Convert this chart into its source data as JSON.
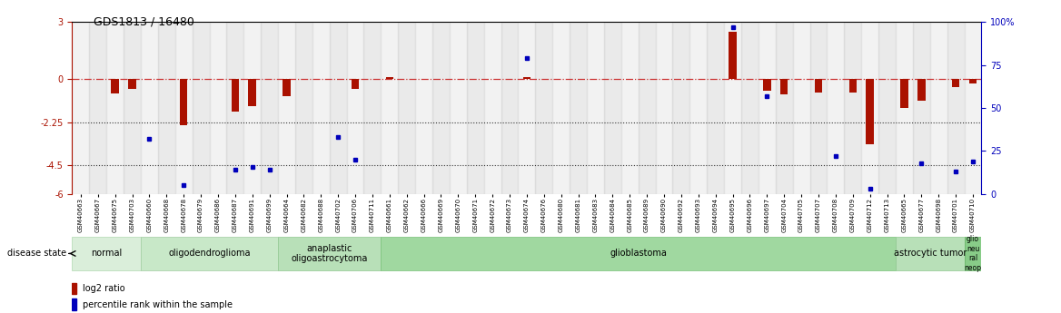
{
  "title": "GDS1813 / 16480",
  "samples": [
    "GSM40663",
    "GSM40667",
    "GSM40675",
    "GSM40703",
    "GSM40660",
    "GSM40668",
    "GSM40678",
    "GSM40679",
    "GSM40686",
    "GSM40687",
    "GSM40691",
    "GSM40699",
    "GSM40664",
    "GSM40682",
    "GSM40688",
    "GSM40702",
    "GSM40706",
    "GSM40711",
    "GSM40661",
    "GSM40662",
    "GSM40666",
    "GSM40669",
    "GSM40670",
    "GSM40671",
    "GSM40672",
    "GSM40673",
    "GSM40674",
    "GSM40676",
    "GSM40680",
    "GSM40681",
    "GSM40683",
    "GSM40684",
    "GSM40685",
    "GSM40689",
    "GSM40690",
    "GSM40692",
    "GSM40693",
    "GSM40694",
    "GSM40695",
    "GSM40696",
    "GSM40697",
    "GSM40704",
    "GSM40705",
    "GSM40707",
    "GSM40708",
    "GSM40709",
    "GSM40712",
    "GSM40713",
    "GSM40665",
    "GSM40677",
    "GSM40698",
    "GSM40701",
    "GSM40710"
  ],
  "log2_ratio": [
    null,
    null,
    -0.75,
    -0.5,
    null,
    null,
    -2.4,
    null,
    null,
    -1.7,
    -1.4,
    null,
    -0.9,
    null,
    null,
    null,
    -0.5,
    null,
    0.1,
    null,
    null,
    null,
    null,
    null,
    null,
    null,
    null,
    null,
    null,
    null,
    null,
    null,
    null,
    null,
    null,
    null,
    null,
    null,
    null,
    null,
    null,
    null,
    null,
    null,
    null,
    null,
    -3.4,
    null,
    -1.5,
    -1.1,
    null,
    -0.4,
    -0.2
  ],
  "log2_ratio_right": [
    null,
    null,
    null,
    null,
    null,
    null,
    null,
    null,
    null,
    null,
    null,
    null,
    null,
    null,
    null,
    null,
    null,
    null,
    null,
    null,
    null,
    null,
    null,
    null,
    null,
    null,
    0.1,
    null,
    null,
    null,
    null,
    null,
    null,
    null,
    null,
    null,
    null,
    null,
    2.5,
    null,
    -0.6,
    -0.8,
    null,
    -0.7,
    null,
    -0.7,
    null,
    null,
    null,
    null,
    null,
    null,
    null
  ],
  "percentile": [
    null,
    null,
    null,
    null,
    32,
    null,
    5,
    null,
    null,
    14,
    16,
    14,
    null,
    null,
    null,
    33,
    20,
    null,
    null,
    null,
    null,
    null,
    null,
    null,
    null,
    null,
    79,
    null,
    null,
    null,
    null,
    null,
    null,
    null,
    null,
    null,
    null,
    null,
    97,
    null,
    57,
    null,
    null,
    null,
    22,
    null,
    3,
    null,
    null,
    18,
    null,
    13,
    19
  ],
  "disease_groups": [
    {
      "label": "normal",
      "start": 0,
      "end": 3
    },
    {
      "label": "oligodendroglioma",
      "start": 4,
      "end": 11
    },
    {
      "label": "anaplastic\noligoastrocytoma",
      "start": 12,
      "end": 17
    },
    {
      "label": "glioblastoma",
      "start": 18,
      "end": 47
    },
    {
      "label": "astrocytic tumor",
      "start": 48,
      "end": 51
    },
    {
      "label": "glio\nneu\nral\nneop",
      "start": 52,
      "end": 52
    }
  ],
  "group_colors": [
    "#daeeda",
    "#c8e8c8",
    "#b8e0b8",
    "#a0d8a0",
    "#b8e0b8",
    "#88cc88"
  ],
  "group_border_colors": [
    "#b0d8b0",
    "#a0cca0",
    "#90c890",
    "#78c078",
    "#90c890",
    "#60b060"
  ],
  "ylim_left": [
    -6,
    3
  ],
  "ylim_right": [
    0,
    100
  ],
  "bar_color": "#aa1100",
  "point_color": "#0000bb",
  "hline_zero_color": "#cc3333",
  "hline_dotted_color": "#333333",
  "background_color": "#ffffff",
  "label_bg_even": "#e0e0e0",
  "label_bg_odd": "#cccccc"
}
